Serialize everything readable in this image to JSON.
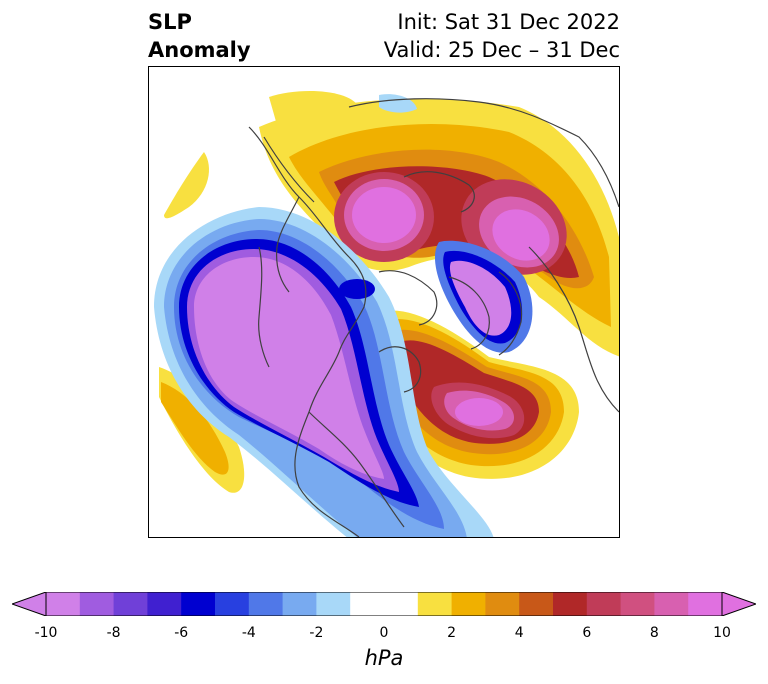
{
  "title": {
    "main_line1": "SLP",
    "main_line2": "Anomaly",
    "init": "Init: Sat 31 Dec 2022",
    "valid": "Valid: 25 Dec – 31 Dec"
  },
  "colorbar": {
    "unit": "hPa",
    "ticks": [
      "-10",
      "-8",
      "-6",
      "-4",
      "-2",
      "0",
      "2",
      "4",
      "6",
      "8",
      "10"
    ],
    "colors": [
      "#d080e8",
      "#a05ce0",
      "#7040d8",
      "#4020d0",
      "#0000d0",
      "#2840e0",
      "#5078e8",
      "#78aaf0",
      "#a8d8f8",
      "#ffffff",
      "#ffffff",
      "#f8e040",
      "#f0b000",
      "#e08c10",
      "#c85818",
      "#b02828",
      "#c03c58",
      "#d05080",
      "#d860b0",
      "#e070e0"
    ]
  },
  "map": {
    "projection": "north-polar-stereographic",
    "field": "SLP anomaly"
  }
}
